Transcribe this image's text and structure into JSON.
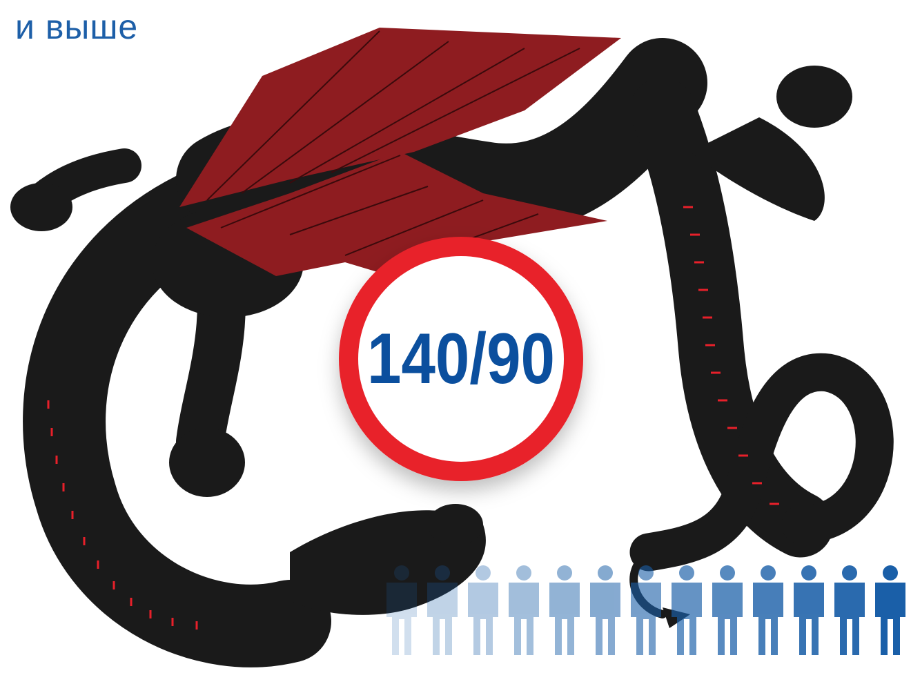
{
  "header": {
    "text": "и выше"
  },
  "badge": {
    "text": "140/90"
  }
}
